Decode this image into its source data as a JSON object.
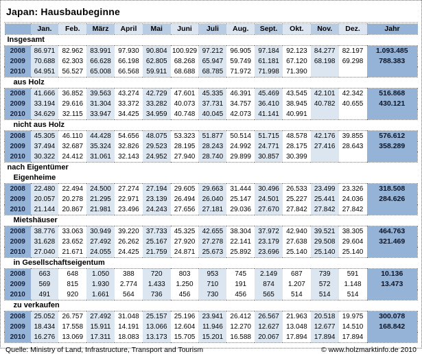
{
  "title": "Japan: Hausbaubeginne",
  "columns": [
    "Jan.",
    "Feb.",
    "März",
    "April",
    "Mai",
    "Juni",
    "Juli",
    "Aug.",
    "Sept.",
    "Okt.",
    "Nov.",
    "Dez.",
    "Jahr"
  ],
  "colors": {
    "accent_medium_blue": "#95B3D7",
    "header_shaded_blue": "#B8CCE4",
    "column_shaded_blue": "#DCE6F1",
    "text": "#000000"
  },
  "sections": [
    {
      "key": "insgesamt",
      "label": "Insgesamt",
      "indent": false,
      "rows": [
        {
          "year": "2008",
          "values": [
            "86.971",
            "82.962",
            "83.991",
            "97.930",
            "90.804",
            "100.929",
            "97.212",
            "96.905",
            "97.184",
            "92.123",
            "84.277",
            "82.197"
          ],
          "jahr": "1.093.485"
        },
        {
          "year": "2009",
          "values": [
            "70.688",
            "62.303",
            "66.628",
            "66.198",
            "62.805",
            "68.268",
            "65.947",
            "59.749",
            "61.181",
            "67.120",
            "68.198",
            "69.298"
          ],
          "jahr": "788.383"
        },
        {
          "year": "2010",
          "values": [
            "64.951",
            "56.527",
            "65.008",
            "66.568",
            "59.911",
            "68.688",
            "68.785",
            "71.972",
            "71.998",
            "71.390",
            "",
            ""
          ],
          "jahr": ""
        }
      ]
    },
    {
      "key": "aus-holz",
      "label": "aus Holz",
      "indent": true,
      "rows": [
        {
          "year": "2008",
          "values": [
            "41.666",
            "36.852",
            "39.563",
            "43.274",
            "42.729",
            "47.601",
            "45.335",
            "46.391",
            "45.469",
            "43.545",
            "42.101",
            "42.342"
          ],
          "jahr": "516.868"
        },
        {
          "year": "2009",
          "values": [
            "33.194",
            "29.616",
            "31.304",
            "33.372",
            "33.282",
            "40.073",
            "37.731",
            "34.757",
            "36.410",
            "38.945",
            "40.782",
            "40.655"
          ],
          "jahr": "430.121"
        },
        {
          "year": "2010",
          "values": [
            "34.629",
            "32.115",
            "33.947",
            "34.425",
            "34.959",
            "40.748",
            "40.045",
            "42.073",
            "41.141",
            "40.991",
            "",
            ""
          ],
          "jahr": ""
        }
      ]
    },
    {
      "key": "nicht-aus-holz",
      "label": "nicht aus Holz",
      "indent": true,
      "rows": [
        {
          "year": "2008",
          "values": [
            "45.305",
            "46.110",
            "44.428",
            "54.656",
            "48.075",
            "53.323",
            "51.877",
            "50.514",
            "51.715",
            "48.578",
            "42.176",
            "39.855"
          ],
          "jahr": "576.612"
        },
        {
          "year": "2009",
          "values": [
            "37.494",
            "32.687",
            "35.324",
            "32.826",
            "29.523",
            "28.195",
            "28.243",
            "24.992",
            "24.771",
            "28.175",
            "27.416",
            "28.643"
          ],
          "jahr": "358.289"
        },
        {
          "year": "2010",
          "values": [
            "30.322",
            "24.412",
            "31.061",
            "32.143",
            "24.952",
            "27.940",
            "28.740",
            "29.899",
            "30.857",
            "30.399",
            "",
            ""
          ],
          "jahr": ""
        }
      ]
    },
    {
      "key": "nach-eigentuemer",
      "label": "nach Eigentümer",
      "indent": false,
      "rows": []
    },
    {
      "key": "eigenheime",
      "label": "Eigenheime",
      "indent": true,
      "rows": [
        {
          "year": "2008",
          "values": [
            "22.480",
            "22.494",
            "24.500",
            "27.274",
            "27.194",
            "29.605",
            "29.663",
            "31.444",
            "30.496",
            "26.533",
            "23.499",
            "23.326"
          ],
          "jahr": "318.508"
        },
        {
          "year": "2009",
          "values": [
            "20.057",
            "20.278",
            "21.295",
            "22.971",
            "23.139",
            "26.494",
            "26.040",
            "25.147",
            "24.501",
            "25.227",
            "25.441",
            "24.036"
          ],
          "jahr": "284.626"
        },
        {
          "year": "2010",
          "values": [
            "21.144",
            "20.867",
            "21.981",
            "23.496",
            "24.243",
            "27.656",
            "27.181",
            "29.036",
            "27.670",
            "27.842",
            "27.842",
            "27.842"
          ],
          "jahr": ""
        }
      ]
    },
    {
      "key": "mietshaeuser",
      "label": "Mietshäuser",
      "indent": true,
      "rows": [
        {
          "year": "2008",
          "values": [
            "38.776",
            "33.063",
            "30.949",
            "39.220",
            "37.733",
            "45.325",
            "42.655",
            "38.304",
            "37.972",
            "42.940",
            "39.521",
            "38.305"
          ],
          "jahr": "464.763"
        },
        {
          "year": "2009",
          "values": [
            "31.628",
            "23.652",
            "27.492",
            "26.262",
            "25.167",
            "27.920",
            "27.278",
            "22.141",
            "23.179",
            "27.638",
            "29.508",
            "29.604"
          ],
          "jahr": "321.469"
        },
        {
          "year": "2010",
          "values": [
            "27.040",
            "21.671",
            "24.055",
            "24.425",
            "21.759",
            "24.871",
            "25.673",
            "25.892",
            "23.696",
            "25.140",
            "25.140",
            "25.140"
          ],
          "jahr": ""
        }
      ]
    },
    {
      "key": "in-gesellschaftseigentum",
      "label": "in Gesellschaftseigentum",
      "indent": true,
      "rows": [
        {
          "year": "2008",
          "values": [
            "663",
            "648",
            "1.050",
            "388",
            "720",
            "803",
            "953",
            "745",
            "2.149",
            "687",
            "739",
            "591"
          ],
          "jahr": "10.136"
        },
        {
          "year": "2009",
          "values": [
            "569",
            "815",
            "1.930",
            "2.774",
            "1.433",
            "1.250",
            "710",
            "191",
            "874",
            "1.207",
            "572",
            "1.148"
          ],
          "jahr": "13.473"
        },
        {
          "year": "2010",
          "values": [
            "491",
            "920",
            "1.661",
            "564",
            "736",
            "456",
            "730",
            "456",
            "565",
            "514",
            "514",
            "514"
          ],
          "jahr": ""
        }
      ]
    },
    {
      "key": "zu-verkaufen",
      "label": "zu verkaufen",
      "indent": true,
      "rows": [
        {
          "year": "2008",
          "values": [
            "25.052",
            "26.757",
            "27.492",
            "31.048",
            "25.157",
            "25.196",
            "23.941",
            "26.412",
            "26.567",
            "21.963",
            "20.518",
            "19.975"
          ],
          "jahr": "300.078"
        },
        {
          "year": "2009",
          "values": [
            "18.434",
            "17.558",
            "15.911",
            "14.191",
            "13.066",
            "12.604",
            "11.946",
            "12.270",
            "12.627",
            "13.048",
            "12.677",
            "14.510"
          ],
          "jahr": "168.842"
        },
        {
          "year": "2010",
          "values": [
            "16.276",
            "13.069",
            "17.311",
            "18.083",
            "13.173",
            "15.705",
            "15.201",
            "16.588",
            "20.067",
            "17.894",
            "17.894",
            "17.894"
          ],
          "jahr": ""
        }
      ]
    }
  ],
  "footer": {
    "source": "Quelle: Ministry of Land, Infrastructure, Transport and Tourism",
    "copyright": "© www.holzmarktinfo.de 2010"
  }
}
